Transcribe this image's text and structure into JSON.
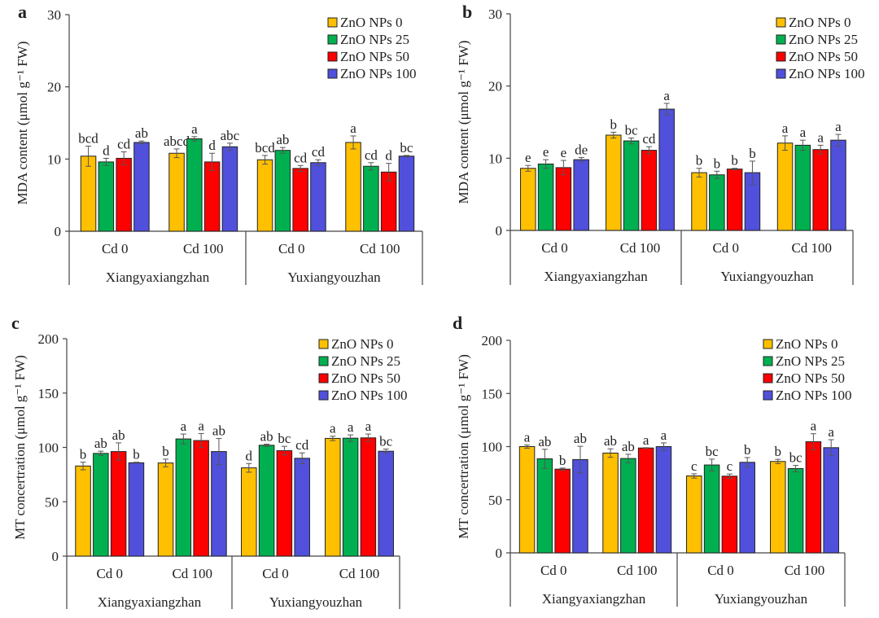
{
  "colors": {
    "ZnO NPs 0": "#FFC000",
    "ZnO NPs 25": "#00B050",
    "ZnO NPs 50": "#FF0000",
    "ZnO NPs 100": "#5050DC",
    "bar_edge": "#222222",
    "error_bar": "#555555",
    "axis": "#444444"
  },
  "chart_data": [
    {
      "panel": "a",
      "type": "bar",
      "ylabel": "MDA content (μmol g⁻¹ FW)",
      "ylim": [
        0,
        30
      ],
      "yticks": [
        0,
        10,
        20,
        30
      ],
      "grid": false,
      "legend_position": "top-right",
      "groups": [
        "Xiangyaxiangzhan",
        "Yuxiangyouzhan"
      ],
      "categories": [
        "Cd 0",
        "Cd 100",
        "Cd 0",
        "Cd 100"
      ],
      "series": [
        {
          "name": "ZnO NPs 0",
          "values": [
            10.4,
            10.8,
            9.9,
            12.3
          ],
          "errors": [
            1.4,
            0.6,
            0.6,
            0.9
          ],
          "letters": [
            "bcd",
            "abcd",
            "bcd",
            "a"
          ]
        },
        {
          "name": "ZnO NPs 25",
          "values": [
            9.6,
            12.8,
            11.2,
            9.0
          ],
          "errors": [
            0.5,
            0.3,
            0.4,
            0.5
          ],
          "letters": [
            "d",
            "a",
            "ab",
            "cd"
          ]
        },
        {
          "name": "ZnO NPs 50",
          "values": [
            10.1,
            9.6,
            8.7,
            8.2
          ],
          "errors": [
            0.9,
            1.2,
            0.4,
            1.2
          ],
          "letters": [
            "cd",
            "d",
            "cd",
            "d"
          ]
        },
        {
          "name": "ZnO NPs 100",
          "values": [
            12.3,
            11.7,
            9.5,
            10.4
          ],
          "errors": [
            0.2,
            0.5,
            0.4,
            0.1
          ],
          "letters": [
            "ab",
            "abc",
            "cd",
            "bc"
          ]
        }
      ]
    },
    {
      "panel": "b",
      "type": "bar",
      "ylabel": "MDA content (μmol g⁻¹ FW)",
      "ylim": [
        0,
        30
      ],
      "yticks": [
        0,
        10,
        20,
        30
      ],
      "grid": false,
      "legend_position": "top-right",
      "groups": [
        "Xiangyaxiangzhan",
        "Yuxiangyouzhan"
      ],
      "categories": [
        "Cd 0",
        "Cd 100",
        "Cd 0",
        "Cd 100"
      ],
      "series": [
        {
          "name": "ZnO NPs 0",
          "values": [
            8.6,
            13.2,
            8.0,
            12.1
          ],
          "errors": [
            0.4,
            0.4,
            0.6,
            1.0
          ],
          "letters": [
            "e",
            "b",
            "b",
            "a"
          ]
        },
        {
          "name": "ZnO NPs 25",
          "values": [
            9.2,
            12.4,
            7.7,
            11.8
          ],
          "errors": [
            0.6,
            0.4,
            0.5,
            0.7
          ],
          "letters": [
            "e",
            "bc",
            "b",
            "a"
          ]
        },
        {
          "name": "ZnO NPs 50",
          "values": [
            8.7,
            11.1,
            8.5,
            11.2
          ],
          "errors": [
            1.0,
            0.5,
            0.1,
            0.6
          ],
          "letters": [
            "e",
            "cd",
            "b",
            "a"
          ]
        },
        {
          "name": "ZnO NPs 100",
          "values": [
            9.8,
            16.8,
            8.0,
            12.5
          ],
          "errors": [
            0.3,
            0.8,
            1.6,
            0.8
          ],
          "letters": [
            "de",
            "a",
            "b",
            "a"
          ]
        }
      ]
    },
    {
      "panel": "c",
      "type": "bar",
      "ylabel": "MT concertration (μmol g⁻¹ FW)",
      "ylim": [
        0,
        200
      ],
      "yticks": [
        0,
        50,
        100,
        150,
        200
      ],
      "grid": false,
      "legend_position": "top-right",
      "groups": [
        "Xiangyaxiangzhan",
        "Yuxiangyouzhan"
      ],
      "categories": [
        "Cd 0",
        "Cd 100",
        "Cd 0",
        "Cd 100"
      ],
      "series": [
        {
          "name": "ZnO NPs 0",
          "values": [
            82.9,
            85.7,
            81.2,
            108.3
          ],
          "errors": [
            3.5,
            3.5,
            4.0,
            2.0
          ],
          "letters": [
            "b",
            "b",
            "d",
            "a"
          ]
        },
        {
          "name": "ZnO NPs 25",
          "values": [
            94.5,
            107.8,
            102.0,
            108.5
          ],
          "errors": [
            2.0,
            4.5,
            1.0,
            3.0
          ],
          "letters": [
            "ab",
            "a",
            "ab",
            "a"
          ]
        },
        {
          "name": "ZnO NPs 50",
          "values": [
            96.2,
            106.3,
            97.0,
            108.8
          ],
          "errors": [
            8.0,
            6.5,
            4.0,
            3.5
          ],
          "letters": [
            "ab",
            "a",
            "bc",
            "a"
          ]
        },
        {
          "name": "ZnO NPs 100",
          "values": [
            85.9,
            96.2,
            90.0,
            96.5
          ],
          "errors": [
            0.5,
            12.0,
            5.0,
            2.0
          ],
          "letters": [
            "b",
            "ab",
            "cd",
            "bc"
          ]
        }
      ]
    },
    {
      "panel": "d",
      "type": "bar",
      "ylabel": "MT concertration (μmol g⁻¹ FW)",
      "ylim": [
        0,
        200
      ],
      "yticks": [
        0,
        50,
        100,
        150,
        200
      ],
      "grid": false,
      "legend_position": "top-right",
      "groups": [
        "Xiangyaxiangzhan",
        "Yuxiangyouzhan"
      ],
      "categories": [
        "Cd 0",
        "Cd 100",
        "Cd 0",
        "Cd 100"
      ],
      "series": [
        {
          "name": "ZnO NPs 0",
          "values": [
            100.0,
            93.9,
            72.4,
            86.0
          ],
          "errors": [
            1.5,
            4.0,
            2.0,
            2.0
          ],
          "letters": [
            "a",
            "ab",
            "c",
            "b"
          ]
        },
        {
          "name": "ZnO NPs 25",
          "values": [
            88.5,
            88.8,
            82.7,
            79.3
          ],
          "errors": [
            9.0,
            4.0,
            5.5,
            3.0
          ],
          "letters": [
            "ab",
            "ab",
            "bc",
            "bc"
          ]
        },
        {
          "name": "ZnO NPs 50",
          "values": [
            78.8,
            98.7,
            72.2,
            104.6
          ],
          "errors": [
            1.0,
            0.3,
            2.0,
            7.5
          ],
          "letters": [
            "b",
            "a",
            "c",
            "a"
          ]
        },
        {
          "name": "ZnO NPs 100",
          "values": [
            87.8,
            100.0,
            85.2,
            99.0
          ],
          "errors": [
            12.5,
            3.5,
            4.5,
            7.5
          ],
          "letters": [
            "ab",
            "a",
            "b",
            "a"
          ]
        }
      ]
    }
  ]
}
